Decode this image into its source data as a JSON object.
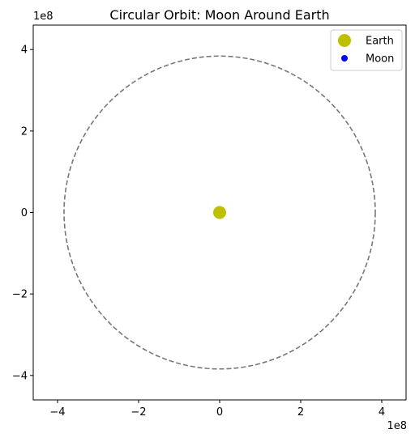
{
  "chart_data": {
    "type": "scatter",
    "title": "Circular Orbit: Moon Around Earth",
    "xlabel": "",
    "ylabel": "",
    "xlim": [
      -460000000.0,
      460000000.0
    ],
    "ylim": [
      -460000000.0,
      460000000.0
    ],
    "x_ticks": [
      -400000000.0,
      -200000000.0,
      0,
      200000000.0,
      400000000.0
    ],
    "y_ticks": [
      -400000000.0,
      -200000000.0,
      0,
      200000000.0,
      400000000.0
    ],
    "x_tick_labels": [
      "−4",
      "−2",
      "0",
      "2",
      "4"
    ],
    "y_tick_labels": [
      "−4",
      "−2",
      "0",
      "2",
      "4"
    ],
    "x_offset_label": "1e8",
    "y_offset_label": "1e8",
    "grid": false,
    "legend_position": "top-right",
    "orbit": {
      "shape": "circle",
      "center": [
        0,
        0
      ],
      "radius": 384000000.0,
      "color": "#777777",
      "style": "dashed"
    },
    "series": [
      {
        "name": "Earth",
        "x": [
          0
        ],
        "y": [
          0
        ],
        "color": "#bfbf00",
        "marker": "circle",
        "marker_size": "large"
      },
      {
        "name": "Moon",
        "x": [],
        "y": [],
        "color": "#0000ff",
        "marker": "circle",
        "marker_size": "small"
      }
    ]
  }
}
